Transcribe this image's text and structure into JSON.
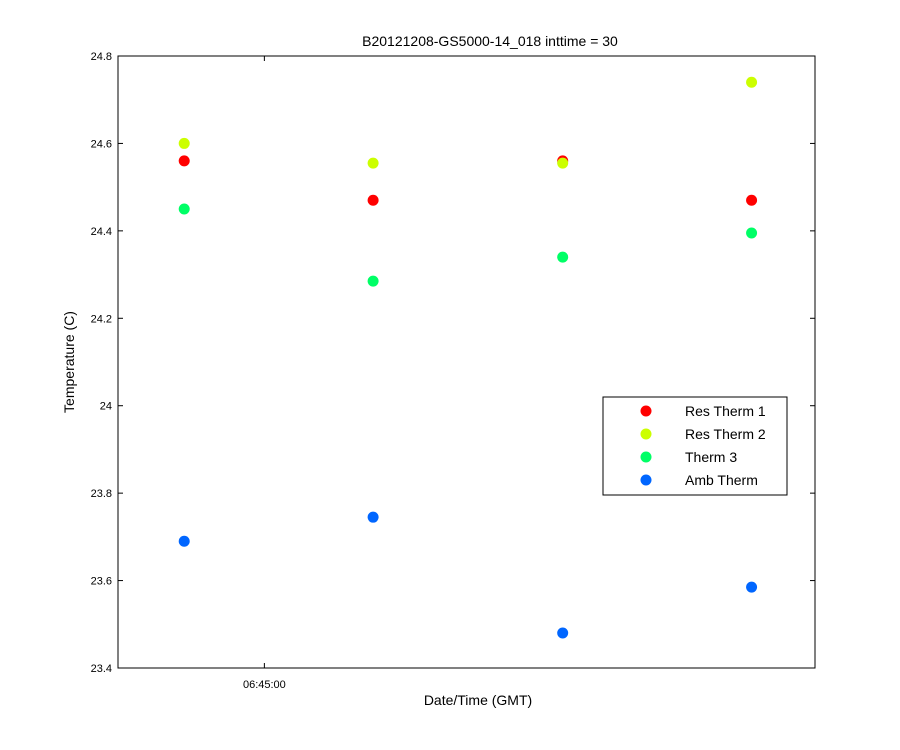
{
  "chart_data": {
    "type": "scatter",
    "title": "B20121208-GS5000-14_018 inttime = 30",
    "xlabel": "Date/Time (GMT)",
    "ylabel": "Temperature (C)",
    "x_ticks": [
      {
        "label": "06:45:00",
        "value": 0.21
      }
    ],
    "x_range": [
      0,
      1
    ],
    "ylim": [
      23.4,
      24.8
    ],
    "y_ticks": [
      23.4,
      23.6,
      23.8,
      24,
      24.2,
      24.4,
      24.6,
      24.8
    ],
    "y_tick_labels": [
      "23.4",
      "23.6",
      "23.8",
      "24",
      "24.2",
      "24.4",
      "24.6",
      "24.8"
    ],
    "x": [
      0.095,
      0.366,
      0.638,
      0.909
    ],
    "grid": false,
    "legend_position": "right",
    "series": [
      {
        "name": "Res Therm 1",
        "color": "#ff0000",
        "values": [
          24.56,
          24.47,
          24.56,
          24.47
        ]
      },
      {
        "name": "Res Therm 2",
        "color": "#ccff00",
        "values": [
          24.6,
          24.555,
          24.555,
          24.74
        ]
      },
      {
        "name": "Therm 3",
        "color": "#00ff66",
        "values": [
          24.45,
          24.285,
          24.34,
          24.395
        ]
      },
      {
        "name": "Amb Therm",
        "color": "#0066ff",
        "values": [
          23.69,
          23.745,
          23.48,
          23.585
        ]
      }
    ]
  }
}
